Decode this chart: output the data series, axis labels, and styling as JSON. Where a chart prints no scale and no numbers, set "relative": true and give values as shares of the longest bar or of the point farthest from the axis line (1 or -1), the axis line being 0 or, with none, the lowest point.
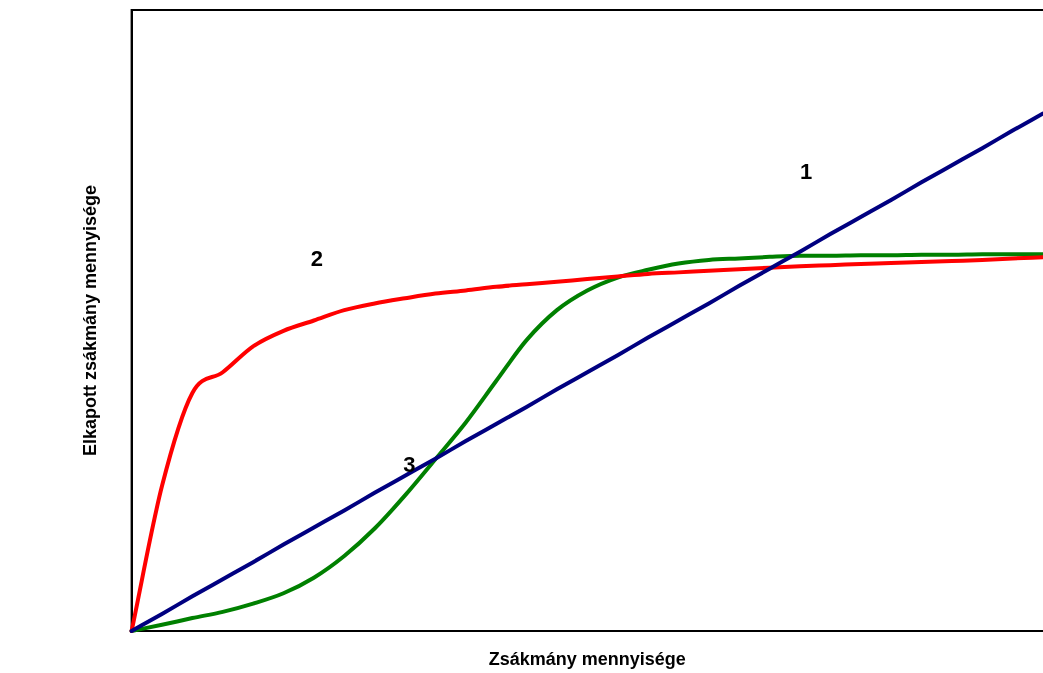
{
  "chart_data": {
    "type": "line",
    "relative": true,
    "xlabel": "Zsákmány mennyisége",
    "ylabel": "Elkapott zsákmány mennyisége",
    "categories": [
      null,
      null,
      null,
      null,
      null,
      null,
      null,
      null,
      null,
      null,
      null,
      null,
      null,
      null,
      null,
      null,
      null,
      null,
      null,
      null,
      null,
      null,
      null,
      null,
      null,
      null,
      null,
      null,
      null,
      null,
      null
    ],
    "series": [
      {
        "name": "1",
        "color": "#000080",
        "values": [
          0,
          0.033,
          0.067,
          0.1,
          0.133,
          0.167,
          0.2,
          0.233,
          0.267,
          0.3,
          0.333,
          0.367,
          0.4,
          0.433,
          0.467,
          0.5,
          0.533,
          0.567,
          0.6,
          0.633,
          0.667,
          0.7,
          0.733,
          0.767,
          0.8,
          0.833,
          0.867,
          0.9,
          0.933,
          0.967,
          1
        ]
      },
      {
        "name": "2",
        "color": "#ff0000",
        "values": [
          0,
          0.28,
          0.46,
          0.5,
          0.55,
          0.58,
          0.6,
          0.62,
          0.633,
          0.643,
          0.652,
          0.658,
          0.665,
          0.67,
          0.675,
          0.68,
          0.685,
          0.69,
          0.693,
          0.696,
          0.699,
          0.702,
          0.705,
          0.707,
          0.709,
          0.711,
          0.713,
          0.715,
          0.717,
          0.72,
          0.722
        ]
      },
      {
        "name": "3",
        "color": "#008000",
        "values": [
          0,
          0.012,
          0.025,
          0.037,
          0.053,
          0.073,
          0.103,
          0.145,
          0.198,
          0.262,
          0.332,
          0.403,
          0.483,
          0.562,
          0.62,
          0.658,
          0.683,
          0.698,
          0.71,
          0.717,
          0.72,
          0.723,
          0.725,
          0.725,
          0.726,
          0.726,
          0.727,
          0.727,
          0.728,
          0.728,
          0.728
        ]
      }
    ],
    "legend": false,
    "marker": "none",
    "line_style": "solid",
    "grid": false
  }
}
